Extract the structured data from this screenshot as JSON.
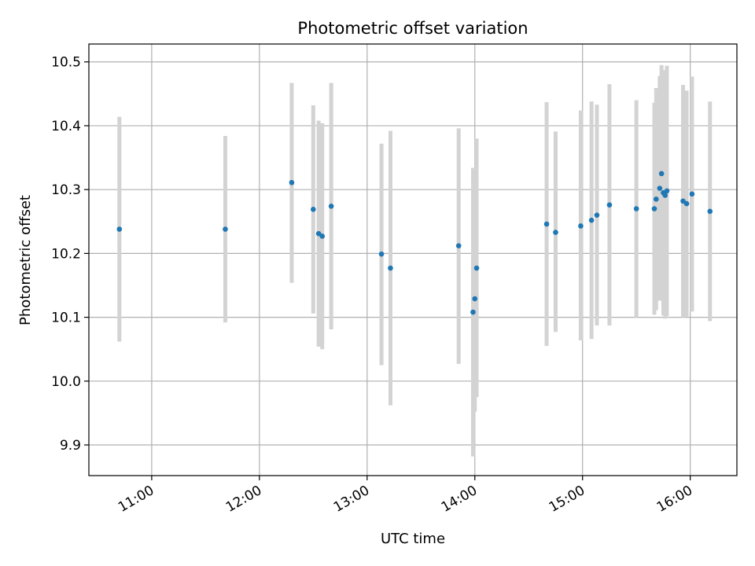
{
  "chart_data": {
    "type": "scatter",
    "title": "Photometric offset variation",
    "xlabel": "UTC time",
    "ylabel": "Photometric offset",
    "xlim": [
      "10:25",
      "16:26"
    ],
    "ylim": [
      9.852,
      10.528
    ],
    "xticks": [
      "11:00",
      "12:00",
      "13:00",
      "14:00",
      "15:00",
      "16:00"
    ],
    "yticks": [
      "9.9",
      "10.0",
      "10.1",
      "10.2",
      "10.3",
      "10.4",
      "10.5"
    ],
    "grid": true,
    "colors": {
      "point": "#1f77b4",
      "errorbar": "#d3d3d3",
      "grid": "#b0b0b0"
    },
    "points": [
      {
        "x": "10:42",
        "y": 10.238,
        "ylow": 10.062,
        "yhigh": 10.414
      },
      {
        "x": "11:41",
        "y": 10.238,
        "ylow": 10.092,
        "yhigh": 10.384
      },
      {
        "x": "12:18",
        "y": 10.311,
        "ylow": 10.154,
        "yhigh": 10.467
      },
      {
        "x": "12:30",
        "y": 10.269,
        "ylow": 10.106,
        "yhigh": 10.432
      },
      {
        "x": "12:33",
        "y": 10.231,
        "ylow": 10.054,
        "yhigh": 10.408
      },
      {
        "x": "12:35",
        "y": 10.227,
        "ylow": 10.05,
        "yhigh": 10.404
      },
      {
        "x": "12:40",
        "y": 10.274,
        "ylow": 10.081,
        "yhigh": 10.467
      },
      {
        "x": "13:08",
        "y": 10.199,
        "ylow": 10.025,
        "yhigh": 10.372
      },
      {
        "x": "13:13",
        "y": 10.177,
        "ylow": 9.962,
        "yhigh": 10.392
      },
      {
        "x": "13:51",
        "y": 10.212,
        "ylow": 10.027,
        "yhigh": 10.396
      },
      {
        "x": "13:59",
        "y": 10.108,
        "ylow": 9.882,
        "yhigh": 10.334
      },
      {
        "x": "14:00",
        "y": 10.129,
        "ylow": 9.952,
        "yhigh": 10.306
      },
      {
        "x": "14:01",
        "y": 10.177,
        "ylow": 9.975,
        "yhigh": 10.38
      },
      {
        "x": "14:40",
        "y": 10.246,
        "ylow": 10.055,
        "yhigh": 10.437
      },
      {
        "x": "14:45",
        "y": 10.233,
        "ylow": 10.077,
        "yhigh": 10.391
      },
      {
        "x": "14:59",
        "y": 10.243,
        "ylow": 10.064,
        "yhigh": 10.424
      },
      {
        "x": "15:05",
        "y": 10.252,
        "ylow": 10.066,
        "yhigh": 10.438
      },
      {
        "x": "15:08",
        "y": 10.26,
        "ylow": 10.087,
        "yhigh": 10.433
      },
      {
        "x": "15:15",
        "y": 10.276,
        "ylow": 10.087,
        "yhigh": 10.465
      },
      {
        "x": "15:30",
        "y": 10.27,
        "ylow": 10.1,
        "yhigh": 10.44
      },
      {
        "x": "15:40",
        "y": 10.27,
        "ylow": 10.104,
        "yhigh": 10.436
      },
      {
        "x": "15:41",
        "y": 10.285,
        "ylow": 10.111,
        "yhigh": 10.459
      },
      {
        "x": "15:43",
        "y": 10.302,
        "ylow": 10.126,
        "yhigh": 10.478
      },
      {
        "x": "15:44",
        "y": 10.325,
        "ylow": 10.155,
        "yhigh": 10.495
      },
      {
        "x": "15:45",
        "y": 10.295,
        "ylow": 10.103,
        "yhigh": 10.487
      },
      {
        "x": "15:46",
        "y": 10.291,
        "ylow": 10.098,
        "yhigh": 10.484
      },
      {
        "x": "15:47",
        "y": 10.298,
        "ylow": 10.102,
        "yhigh": 10.494
      },
      {
        "x": "15:56",
        "y": 10.282,
        "ylow": 10.1,
        "yhigh": 10.464
      },
      {
        "x": "15:58",
        "y": 10.278,
        "ylow": 10.101,
        "yhigh": 10.455
      },
      {
        "x": "16:01",
        "y": 10.293,
        "ylow": 10.109,
        "yhigh": 10.477
      },
      {
        "x": "16:11",
        "y": 10.266,
        "ylow": 10.094,
        "yhigh": 10.438
      }
    ]
  }
}
